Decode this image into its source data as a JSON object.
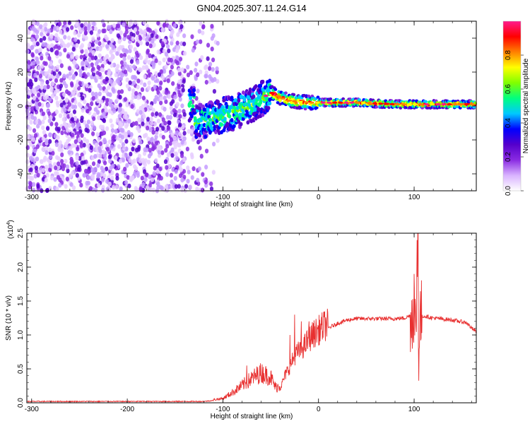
{
  "title": "GN04.2025.307.11.24.G14",
  "chart_data": [
    {
      "type": "heatmap",
      "xlabel": "Height of straight line (km)",
      "ylabel": "Frequency (Hz)",
      "xlim": [
        -305,
        165
      ],
      "ylim": [
        -50,
        50
      ],
      "xticks": [
        "-300",
        "-200",
        "-100",
        "0",
        "100"
      ],
      "yticks": [
        "-40",
        "-20",
        "0",
        "20",
        "40"
      ],
      "colorbar": {
        "label": "Normalized spectral amplitude",
        "range": [
          0,
          1
        ],
        "ticks": [
          "0.0",
          "0.2",
          "0.4",
          "0.6",
          "0.8"
        ],
        "colormap": [
          "#ffffff",
          "#d9b3ff",
          "#8a2be2",
          "#5500cc",
          "#0000ff",
          "#00c8ff",
          "#00ff80",
          "#80ff00",
          "#ffff00",
          "#ff8000",
          "#ff0000",
          "#ff1a8c"
        ]
      },
      "features": [
        {
          "name": "noise-region",
          "x_range": [
            -305,
            -130
          ],
          "freq_range": [
            -50,
            50
          ],
          "amplitude": [
            0.0,
            0.25
          ]
        },
        {
          "name": "signal-track",
          "points": [
            [
              -130,
              -10
            ],
            [
              -110,
              -7
            ],
            [
              -90,
              -4
            ],
            [
              -70,
              0
            ],
            [
              -55,
              6
            ],
            [
              -50,
              8
            ],
            [
              -40,
              5
            ],
            [
              -30,
              3
            ],
            [
              -10,
              2
            ],
            [
              0,
              2
            ],
            [
              40,
              2
            ],
            [
              80,
              1
            ],
            [
              95,
              1
            ],
            [
              165,
              1
            ]
          ]
        }
      ]
    },
    {
      "type": "line",
      "xlabel": "Height of straight line (km)",
      "ylabel": "SNR (10 * v/v)",
      "yscale_label": "(x10",
      "yscale_exp": "4",
      "y_multiplier": 10000,
      "xlim": [
        -305,
        165
      ],
      "ylim": [
        0,
        2.5
      ],
      "xticks": [
        "-300",
        "-200",
        "-100",
        "0",
        "100"
      ],
      "yticks": [
        "0.0",
        "0.5",
        "1.0",
        "1.5",
        "2.0",
        "2.5"
      ],
      "series_color": "#e83030",
      "envelope": {
        "x": [
          -305,
          -200,
          -120,
          -100,
          -90,
          -80,
          -70,
          -60,
          -50,
          -45,
          -40,
          -35,
          -30,
          -25,
          -20,
          -15,
          -10,
          -5,
          0,
          10,
          20,
          30,
          40,
          60,
          80,
          90,
          98,
          100,
          102,
          103,
          104,
          106,
          110,
          120,
          140,
          155,
          160,
          165
        ],
        "y": [
          0.02,
          0.02,
          0.02,
          0.05,
          0.12,
          0.2,
          0.28,
          0.35,
          0.3,
          0.18,
          0.2,
          0.38,
          0.5,
          0.65,
          0.72,
          0.78,
          0.88,
          0.95,
          1.0,
          1.1,
          1.17,
          1.22,
          1.24,
          1.24,
          1.24,
          1.25,
          1.3,
          1.5,
          0.8,
          2.5,
          0.6,
          1.25,
          1.28,
          1.25,
          1.22,
          1.18,
          1.1,
          1.05
        ]
      },
      "spikes": [
        {
          "x": -75,
          "y": 0.55
        },
        {
          "x": -30,
          "y": 1.0
        },
        {
          "x": -25,
          "y": 1.3
        },
        {
          "x": -18,
          "y": 1.2
        },
        {
          "x": -10,
          "y": 1.2
        },
        {
          "x": 100,
          "y": 1.9
        },
        {
          "x": 104,
          "y": 2.5
        }
      ]
    }
  ]
}
